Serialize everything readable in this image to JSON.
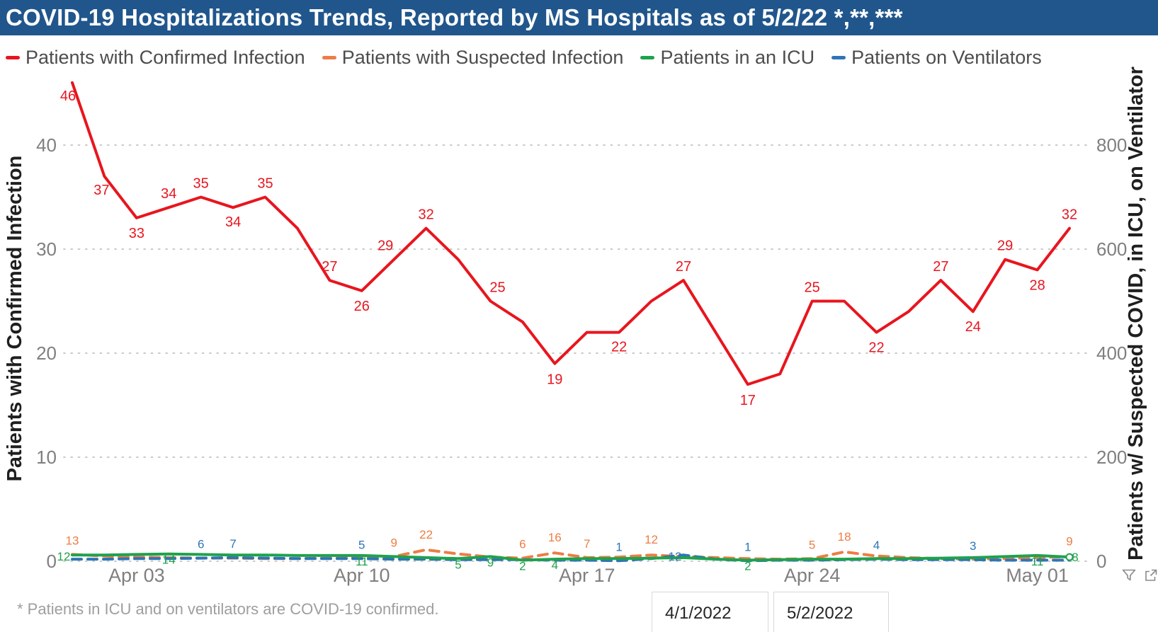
{
  "header": {
    "title": "COVID-19 Hospitalizations Trends, Reported by MS Hospitals as of 5/2/22 *,**,***",
    "bg_color": "#20568c"
  },
  "legend": {
    "position": "top",
    "items": [
      {
        "label": "Patients with Confirmed Infection",
        "color": "#e8151e"
      },
      {
        "label": "Patients with Suspected Infection",
        "color": "#ed7d45"
      },
      {
        "label": "Patients in an ICU",
        "color": "#1fa24c"
      },
      {
        "label": "Patients on Ventilators",
        "color": "#2e75b6"
      }
    ]
  },
  "chart_data": {
    "type": "line",
    "n_points": 32,
    "date_range": {
      "start": "4/1/2022",
      "end": "5/2/2022"
    },
    "x_ticks": [
      {
        "index": 2,
        "label": "Apr 03"
      },
      {
        "index": 9,
        "label": "Apr 10"
      },
      {
        "index": 16,
        "label": "Apr 17"
      },
      {
        "index": 23,
        "label": "Apr 24"
      },
      {
        "index": 30,
        "label": "May 01"
      }
    ],
    "left_axis": {
      "title": "Patients with Confirmed Infection",
      "ticks": [
        0,
        10,
        20,
        30,
        40
      ],
      "max": 40
    },
    "right_axis": {
      "title": "Patients w/ Suspected COVID, in ICU, on Ventilator",
      "ticks": [
        0,
        200,
        400,
        600,
        800
      ],
      "max": 800
    },
    "grid": "dotted horizontal",
    "series": [
      {
        "name": "Patients with Confirmed Infection",
        "axis": "left",
        "style": "solid",
        "color": "#e8151e",
        "values": [
          46,
          37,
          33,
          34,
          35,
          34,
          35,
          32,
          27,
          26,
          29,
          32,
          29,
          25,
          23,
          19,
          22,
          22,
          25,
          27,
          22,
          17,
          18,
          25,
          25,
          22,
          24,
          27,
          24,
          29,
          28,
          32
        ],
        "point_labels": [
          {
            "i": 0,
            "t": "46",
            "dx": -6,
            "dy": 25
          },
          {
            "i": 1,
            "t": "37",
            "dx": -4,
            "dy": 26
          },
          {
            "i": 2,
            "t": "33",
            "dy": 28
          },
          {
            "i": 3,
            "t": "34",
            "dy": -13
          },
          {
            "i": 4,
            "t": "35",
            "dy": -13
          },
          {
            "i": 5,
            "t": "34",
            "dy": 27
          },
          {
            "i": 6,
            "t": "35",
            "dy": -13
          },
          {
            "i": 8,
            "t": "27",
            "dy": -13
          },
          {
            "i": 9,
            "t": "26",
            "dy": 28
          },
          {
            "i": 10,
            "t": "29",
            "dx": -12,
            "dy": -13
          },
          {
            "i": 11,
            "t": "32",
            "dy": -13
          },
          {
            "i": 13,
            "t": "25",
            "dx": 10,
            "dy": -13
          },
          {
            "i": 15,
            "t": "19",
            "dy": 29
          },
          {
            "i": 17,
            "t": "22",
            "dy": 27
          },
          {
            "i": 19,
            "t": "27",
            "dy": -13
          },
          {
            "i": 21,
            "t": "17",
            "dy": 29
          },
          {
            "i": 23,
            "t": "25",
            "dy": -13
          },
          {
            "i": 25,
            "t": "22",
            "dy": 28
          },
          {
            "i": 27,
            "t": "27",
            "dy": -13
          },
          {
            "i": 28,
            "t": "24",
            "dy": 28
          },
          {
            "i": 29,
            "t": "29",
            "dy": -13
          },
          {
            "i": 30,
            "t": "28",
            "dy": 28
          },
          {
            "i": 31,
            "t": "32",
            "dy": -13
          }
        ]
      },
      {
        "name": "Patients with Suspected Infection",
        "axis": "right",
        "style": "dashed",
        "color": "#ed7d45",
        "values": [
          13,
          10,
          8,
          7,
          6,
          6,
          5,
          5,
          6,
          7,
          9,
          22,
          14,
          8,
          6,
          16,
          7,
          8,
          12,
          9,
          7,
          5,
          4,
          5,
          18,
          10,
          7,
          5,
          4,
          5,
          7,
          9
        ],
        "point_labels": [
          {
            "i": 0,
            "t": "13",
            "dy": -14
          },
          {
            "i": 10,
            "t": "9",
            "dy": -14
          },
          {
            "i": 11,
            "t": "22",
            "dy": -16
          },
          {
            "i": 14,
            "t": "6",
            "dy": -14
          },
          {
            "i": 15,
            "t": "16",
            "dy": -16
          },
          {
            "i": 16,
            "t": "7",
            "dy": -14
          },
          {
            "i": 18,
            "t": "12",
            "dy": -16
          },
          {
            "i": 23,
            "t": "5",
            "dy": -14
          },
          {
            "i": 24,
            "t": "18",
            "dy": -16
          },
          {
            "i": 31,
            "t": "9",
            "dy": -16
          }
        ]
      },
      {
        "name": "Patients in an ICU",
        "axis": "right",
        "style": "solid",
        "color": "#1fa24c",
        "end_marker": true,
        "values": [
          12,
          12,
          13,
          14,
          13,
          12,
          12,
          11,
          11,
          11,
          9,
          7,
          5,
          9,
          2,
          4,
          5,
          5,
          6,
          7,
          4,
          2,
          3,
          4,
          4,
          5,
          5,
          6,
          7,
          9,
          11,
          8
        ],
        "point_labels": [
          {
            "i": 0,
            "t": "12",
            "dx": -12,
            "dy": 8
          },
          {
            "i": 3,
            "t": "14",
            "dy": 14
          },
          {
            "i": 9,
            "t": "11",
            "dy": 14
          },
          {
            "i": 12,
            "t": "5",
            "dy": 14
          },
          {
            "i": 13,
            "t": "9",
            "dy": 14
          },
          {
            "i": 14,
            "t": "2",
            "dy": 14
          },
          {
            "i": 15,
            "t": "4",
            "dy": 14
          },
          {
            "i": 21,
            "t": "2",
            "dy": 14
          },
          {
            "i": 30,
            "t": "11",
            "dy": 14
          },
          {
            "i": 31,
            "t": "8",
            "dx": 8,
            "dy": 6
          }
        ]
      },
      {
        "name": "Patients on Ventilators",
        "axis": "right",
        "style": "dashed",
        "color": "#2e75b6",
        "values": [
          4,
          4,
          5,
          5,
          6,
          7,
          6,
          5,
          5,
          5,
          4,
          4,
          3,
          3,
          3,
          2,
          2,
          1,
          5,
          12,
          4,
          1,
          2,
          2,
          3,
          4,
          3,
          3,
          3,
          2,
          2,
          2
        ],
        "point_labels": [
          {
            "i": 4,
            "t": "6",
            "dy": -14
          },
          {
            "i": 5,
            "t": "7",
            "dy": -14
          },
          {
            "i": 9,
            "t": "5",
            "dy": -14
          },
          {
            "i": 17,
            "t": "1",
            "dy": -14
          },
          {
            "i": 19,
            "t": "12",
            "dx": -12,
            "dy": 8
          },
          {
            "i": 21,
            "t": "1",
            "dy": -14
          },
          {
            "i": 25,
            "t": "4",
            "dy": -14
          },
          {
            "i": 28,
            "t": "3",
            "dy": -14
          }
        ]
      }
    ]
  },
  "footnote": {
    "text": "* Patients in ICU and on ventilators are COVID-19 confirmed."
  },
  "slicers": {
    "start_value": "4/1/2022",
    "end_value": "5/2/2022"
  },
  "footer_icons": {
    "filter": "filter-funnel",
    "popout": "open-in-new-window"
  },
  "style_colors": {
    "grid": "#c9c9c9",
    "tick_label": "#7f7f7f",
    "axis_title": "#1f1f1f",
    "legend_text": "#4d4d4d",
    "footnote_text": "#9e9e9e",
    "icon_gray": "#8a8a8a"
  }
}
